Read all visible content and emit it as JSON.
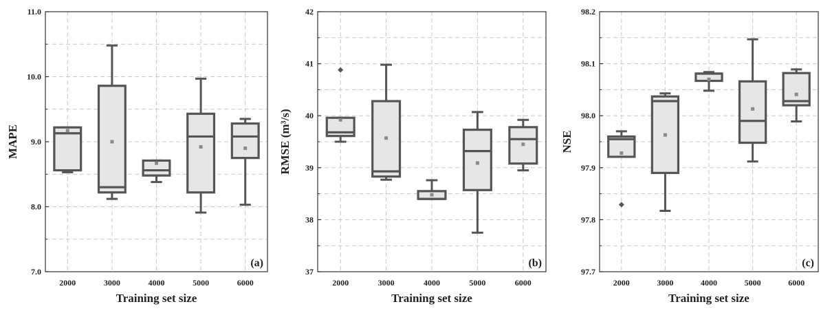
{
  "chart_data": [
    {
      "type": "box",
      "panel_label": "(a)",
      "ylabel": "MAPE",
      "xlabel": "Training set size",
      "categories": [
        "2000",
        "3000",
        "4000",
        "5000",
        "6000"
      ],
      "ylim": [
        7.0,
        11.0
      ],
      "yticks": [
        "7.0",
        "8.0",
        "9.0",
        "10.0",
        "11.0"
      ],
      "ytick_values": [
        7.0,
        8.0,
        9.0,
        10.0,
        11.0
      ],
      "grid": true,
      "boxes": [
        {
          "whisker_low": 8.53,
          "q1": 8.56,
          "median": 9.13,
          "q3": 9.22,
          "whisker_high": 9.22,
          "mean": 9.17,
          "outliers": []
        },
        {
          "whisker_low": 8.12,
          "q1": 8.22,
          "median": 8.3,
          "q3": 9.86,
          "whisker_high": 10.48,
          "mean": 9.0,
          "outliers": []
        },
        {
          "whisker_low": 8.38,
          "q1": 8.48,
          "median": 8.56,
          "q3": 8.71,
          "whisker_high": 8.71,
          "mean": 8.67,
          "outliers": []
        },
        {
          "whisker_low": 7.91,
          "q1": 8.22,
          "median": 9.08,
          "q3": 9.43,
          "whisker_high": 9.97,
          "mean": 8.92,
          "outliers": []
        },
        {
          "whisker_low": 8.03,
          "q1": 8.75,
          "median": 9.08,
          "q3": 9.28,
          "whisker_high": 9.35,
          "mean": 8.9,
          "outliers": []
        }
      ]
    },
    {
      "type": "box",
      "panel_label": "(b)",
      "ylabel": "RMSE (m³/s)",
      "xlabel": "Training set size",
      "categories": [
        "2000",
        "3000",
        "4000",
        "5000",
        "6000"
      ],
      "ylim": [
        37,
        42
      ],
      "yticks": [
        "37",
        "38",
        "39",
        "40",
        "41",
        "42"
      ],
      "ytick_values": [
        37,
        38,
        39,
        40,
        41,
        42
      ],
      "grid": true,
      "boxes": [
        {
          "whisker_low": 39.5,
          "q1": 39.61,
          "median": 39.68,
          "q3": 39.96,
          "whisker_high": 39.96,
          "mean": 39.92,
          "outliers": [
            40.88
          ]
        },
        {
          "whisker_low": 38.77,
          "q1": 38.83,
          "median": 38.93,
          "q3": 40.28,
          "whisker_high": 40.98,
          "mean": 39.57,
          "outliers": []
        },
        {
          "whisker_low": 38.4,
          "q1": 38.4,
          "median": 38.4,
          "q3": 38.55,
          "whisker_high": 38.76,
          "mean": 38.48,
          "outliers": []
        },
        {
          "whisker_low": 37.75,
          "q1": 38.57,
          "median": 39.32,
          "q3": 39.73,
          "whisker_high": 40.07,
          "mean": 39.09,
          "outliers": []
        },
        {
          "whisker_low": 38.95,
          "q1": 39.08,
          "median": 39.55,
          "q3": 39.78,
          "whisker_high": 39.92,
          "mean": 39.45,
          "outliers": []
        }
      ]
    },
    {
      "type": "box",
      "panel_label": "(c)",
      "ylabel": "NSE",
      "xlabel": "Training set size",
      "categories": [
        "2000",
        "3000",
        "4000",
        "5000",
        "6000"
      ],
      "ylim": [
        97.7,
        98.2
      ],
      "yticks": [
        "97.7",
        "97.8",
        "97.9",
        "98.0",
        "98.1",
        "98.2"
      ],
      "ytick_values": [
        97.7,
        97.8,
        97.9,
        98.0,
        98.1,
        98.2
      ],
      "grid": true,
      "boxes": [
        {
          "whisker_low": 97.921,
          "q1": 97.921,
          "median": 97.955,
          "q3": 97.96,
          "whisker_high": 97.97,
          "mean": 97.928,
          "outliers": [
            97.829
          ]
        },
        {
          "whisker_low": 97.817,
          "q1": 97.89,
          "median": 98.028,
          "q3": 98.037,
          "whisker_high": 98.043,
          "mean": 97.963,
          "outliers": []
        },
        {
          "whisker_low": 98.048,
          "q1": 98.067,
          "median": 98.081,
          "q3": 98.081,
          "whisker_high": 98.084,
          "mean": 98.07,
          "outliers": []
        },
        {
          "whisker_low": 97.912,
          "q1": 97.948,
          "median": 97.99,
          "q3": 98.066,
          "whisker_high": 98.147,
          "mean": 98.013,
          "outliers": []
        },
        {
          "whisker_low": 97.989,
          "q1": 98.02,
          "median": 98.028,
          "q3": 98.082,
          "whisker_high": 98.089,
          "mean": 98.041,
          "outliers": []
        }
      ]
    }
  ]
}
